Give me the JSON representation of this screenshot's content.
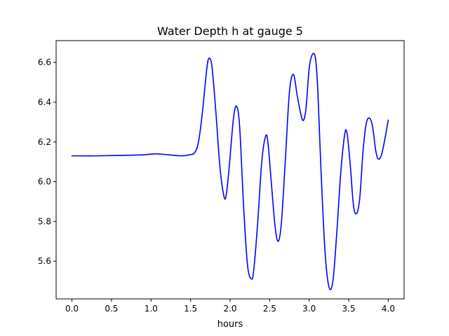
{
  "chart_data": {
    "type": "line",
    "title": "Water Depth h at gauge 5",
    "xlabel": "hours",
    "ylabel": "",
    "xlim": [
      -0.2,
      4.2
    ],
    "ylim": [
      5.41,
      6.71
    ],
    "xticks": [
      0.0,
      0.5,
      1.0,
      1.5,
      2.0,
      2.5,
      3.0,
      3.5,
      4.0
    ],
    "xtick_labels": [
      "0.0",
      "0.5",
      "1.0",
      "1.5",
      "2.0",
      "2.5",
      "3.0",
      "3.5",
      "4.0"
    ],
    "yticks": [
      5.6,
      5.8,
      6.0,
      6.2,
      6.4,
      6.6
    ],
    "ytick_labels": [
      "5.6",
      "5.8",
      "6.0",
      "6.2",
      "6.4",
      "6.6"
    ],
    "grid": false,
    "legend": "none",
    "series": [
      {
        "color": "#0000ff",
        "x": [
          0.0,
          0.3,
          0.6,
          0.9,
          1.05,
          1.15,
          1.3,
          1.4,
          1.48,
          1.55,
          1.6,
          1.65,
          1.7,
          1.73,
          1.77,
          1.82,
          1.87,
          1.92,
          1.95,
          1.99,
          2.04,
          2.08,
          2.12,
          2.17,
          2.22,
          2.27,
          2.3,
          2.35,
          2.4,
          2.45,
          2.48,
          2.52,
          2.57,
          2.61,
          2.65,
          2.7,
          2.75,
          2.8,
          2.85,
          2.9,
          2.93,
          2.96,
          3.0,
          3.04,
          3.08,
          3.11,
          3.15,
          3.2,
          3.25,
          3.3,
          3.35,
          3.4,
          3.45,
          3.48,
          3.52,
          3.56,
          3.6,
          3.64,
          3.68,
          3.72,
          3.76,
          3.8,
          3.84,
          3.87,
          3.91,
          3.95,
          4.0
        ],
        "y": [
          6.13,
          6.13,
          6.132,
          6.135,
          6.14,
          6.138,
          6.132,
          6.13,
          6.135,
          6.145,
          6.2,
          6.35,
          6.55,
          6.62,
          6.58,
          6.35,
          6.08,
          5.93,
          5.93,
          6.08,
          6.31,
          6.38,
          6.28,
          5.88,
          5.58,
          5.51,
          5.56,
          5.8,
          6.1,
          6.23,
          6.19,
          6.0,
          5.77,
          5.7,
          5.8,
          6.12,
          6.45,
          6.54,
          6.43,
          6.33,
          6.31,
          6.37,
          6.57,
          6.64,
          6.62,
          6.45,
          6.05,
          5.65,
          5.47,
          5.5,
          5.75,
          6.05,
          6.24,
          6.24,
          6.08,
          5.88,
          5.84,
          5.92,
          6.15,
          6.29,
          6.32,
          6.28,
          6.16,
          6.115,
          6.13,
          6.2,
          6.31
        ]
      }
    ]
  }
}
